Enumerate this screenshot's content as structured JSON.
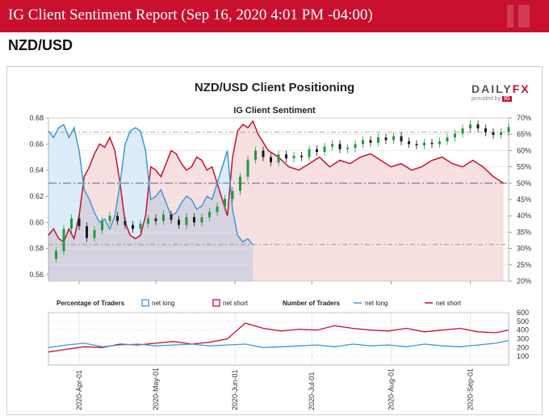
{
  "header": {
    "title": "IG Client Sentiment Report (Sep 16, 2020 4:01 PM -04:00)",
    "pair": "NZD/USD"
  },
  "branding": {
    "logo_left": "DAILY",
    "logo_right": "FX",
    "provided_by": "provided by",
    "badge": "IG"
  },
  "colors": {
    "banner": "#c8102e",
    "net_long": "#3a9ad9",
    "net_short": "#c8102e",
    "candle_up": "#1f9a3a",
    "candle_down": "#1a1a1a"
  },
  "chart_data": [
    {
      "type": "line",
      "title": "NZD/USD Client Positioning",
      "subtitle": "IG Client Sentiment",
      "price_axis": {
        "ylim": [
          0.555,
          0.68
        ],
        "ticks": [
          "0.56",
          "0.58",
          "0.60",
          "0.62",
          "0.64",
          "0.66",
          "0.68"
        ]
      },
      "pct_axis": {
        "ylim": [
          20,
          70
        ],
        "ticks": [
          "20%",
          "25%",
          "30%",
          "35%",
          "40%",
          "45%",
          "50%",
          "55%",
          "60%",
          "65%",
          "70%"
        ]
      },
      "x_ticks": [
        "2020-Apr-01",
        "2020-May-01",
        "2020-Jun-01",
        "2020-Jul-01",
        "2020-Aug-01",
        "2020-Sep-01"
      ],
      "x_range": [
        "2020-03-20",
        "2020-09-16"
      ],
      "reference_lines": {
        "pct": 50,
        "price": [
          0.669,
          0.583
        ]
      },
      "series": [
        {
          "name": "net long",
          "kind": "percent",
          "points": [
            [
              "2020-03-20",
              66
            ],
            [
              "2020-03-22",
              64
            ],
            [
              "2020-03-24",
              67
            ],
            [
              "2020-03-26",
              68
            ],
            [
              "2020-03-28",
              64
            ],
            [
              "2020-03-30",
              67
            ],
            [
              "2020-04-01",
              60
            ],
            [
              "2020-04-03",
              48
            ],
            [
              "2020-04-05",
              45
            ],
            [
              "2020-04-07",
              41
            ],
            [
              "2020-04-09",
              38
            ],
            [
              "2020-04-11",
              39
            ],
            [
              "2020-04-13",
              36
            ],
            [
              "2020-04-15",
              40
            ],
            [
              "2020-04-17",
              50
            ],
            [
              "2020-04-19",
              62
            ],
            [
              "2020-04-21",
              66
            ],
            [
              "2020-04-23",
              67
            ],
            [
              "2020-04-25",
              66
            ],
            [
              "2020-04-27",
              60
            ],
            [
              "2020-04-29",
              45
            ],
            [
              "2020-05-01",
              46
            ],
            [
              "2020-05-03",
              48
            ],
            [
              "2020-05-05",
              44
            ],
            [
              "2020-05-07",
              40
            ],
            [
              "2020-05-09",
              41
            ],
            [
              "2020-05-11",
              44
            ],
            [
              "2020-05-13",
              46
            ],
            [
              "2020-05-15",
              45
            ],
            [
              "2020-05-17",
              42
            ],
            [
              "2020-05-19",
              43
            ],
            [
              "2020-05-21",
              46
            ],
            [
              "2020-05-23",
              45
            ],
            [
              "2020-05-25",
              50
            ],
            [
              "2020-05-27",
              55
            ],
            [
              "2020-05-29",
              60
            ],
            [
              "2020-05-31",
              42
            ],
            [
              "2020-06-02",
              34
            ],
            [
              "2020-06-04",
              32
            ],
            [
              "2020-06-06",
              33
            ],
            [
              "2020-06-08",
              31
            ]
          ]
        },
        {
          "name": "net short",
          "kind": "percent",
          "points": [
            [
              "2020-03-20",
              34
            ],
            [
              "2020-03-22",
              36
            ],
            [
              "2020-03-24",
              33
            ],
            [
              "2020-03-26",
              32
            ],
            [
              "2020-03-28",
              36
            ],
            [
              "2020-03-30",
              33
            ],
            [
              "2020-04-01",
              40
            ],
            [
              "2020-04-03",
              52
            ],
            [
              "2020-04-05",
              55
            ],
            [
              "2020-04-07",
              59
            ],
            [
              "2020-04-09",
              62
            ],
            [
              "2020-04-11",
              61
            ],
            [
              "2020-04-13",
              64
            ],
            [
              "2020-04-15",
              60
            ],
            [
              "2020-04-17",
              50
            ],
            [
              "2020-04-19",
              38
            ],
            [
              "2020-04-21",
              34
            ],
            [
              "2020-04-23",
              33
            ],
            [
              "2020-04-25",
              34
            ],
            [
              "2020-04-27",
              40
            ],
            [
              "2020-04-29",
              55
            ],
            [
              "2020-05-01",
              54
            ],
            [
              "2020-05-03",
              52
            ],
            [
              "2020-05-05",
              56
            ],
            [
              "2020-05-07",
              60
            ],
            [
              "2020-05-09",
              59
            ],
            [
              "2020-05-11",
              56
            ],
            [
              "2020-05-13",
              54
            ],
            [
              "2020-05-15",
              55
            ],
            [
              "2020-05-17",
              58
            ],
            [
              "2020-05-19",
              57
            ],
            [
              "2020-05-21",
              54
            ],
            [
              "2020-05-23",
              55
            ],
            [
              "2020-05-25",
              50
            ],
            [
              "2020-05-27",
              45
            ],
            [
              "2020-05-29",
              40
            ],
            [
              "2020-05-31",
              58
            ],
            [
              "2020-06-02",
              66
            ],
            [
              "2020-06-04",
              68
            ],
            [
              "2020-06-06",
              67
            ],
            [
              "2020-06-08",
              69
            ],
            [
              "2020-06-10",
              65
            ],
            [
              "2020-06-14",
              60
            ],
            [
              "2020-06-18",
              58
            ],
            [
              "2020-06-22",
              55
            ],
            [
              "2020-06-26",
              54
            ],
            [
              "2020-06-30",
              56
            ],
            [
              "2020-07-04",
              58
            ],
            [
              "2020-07-08",
              55
            ],
            [
              "2020-07-12",
              57
            ],
            [
              "2020-07-16",
              56
            ],
            [
              "2020-07-20",
              58
            ],
            [
              "2020-07-24",
              59
            ],
            [
              "2020-07-28",
              57
            ],
            [
              "2020-08-01",
              55
            ],
            [
              "2020-08-05",
              56
            ],
            [
              "2020-08-09",
              54
            ],
            [
              "2020-08-13",
              55
            ],
            [
              "2020-08-17",
              57
            ],
            [
              "2020-08-21",
              58
            ],
            [
              "2020-08-25",
              56
            ],
            [
              "2020-08-29",
              55
            ],
            [
              "2020-09-02",
              57
            ],
            [
              "2020-09-06",
              55
            ],
            [
              "2020-09-10",
              52
            ],
            [
              "2020-09-14",
              50
            ]
          ]
        },
        {
          "name": "price",
          "kind": "price",
          "points": [
            [
              "2020-03-20",
              0.572
            ],
            [
              "2020-03-23",
              0.578
            ],
            [
              "2020-03-26",
              0.595
            ],
            [
              "2020-03-29",
              0.603
            ],
            [
              "2020-04-01",
              0.597
            ],
            [
              "2020-04-04",
              0.588
            ],
            [
              "2020-04-07",
              0.594
            ],
            [
              "2020-04-10",
              0.601
            ],
            [
              "2020-04-13",
              0.605
            ],
            [
              "2020-04-16",
              0.601
            ],
            [
              "2020-04-19",
              0.598
            ],
            [
              "2020-04-22",
              0.595
            ],
            [
              "2020-04-25",
              0.599
            ],
            [
              "2020-04-28",
              0.603
            ],
            [
              "2020-05-01",
              0.601
            ],
            [
              "2020-05-04",
              0.606
            ],
            [
              "2020-05-07",
              0.602
            ],
            [
              "2020-05-10",
              0.598
            ],
            [
              "2020-05-13",
              0.604
            ],
            [
              "2020-05-16",
              0.6
            ],
            [
              "2020-05-19",
              0.604
            ],
            [
              "2020-05-22",
              0.608
            ],
            [
              "2020-05-25",
              0.612
            ],
            [
              "2020-05-28",
              0.618
            ],
            [
              "2020-05-31",
              0.624
            ],
            [
              "2020-06-03",
              0.635
            ],
            [
              "2020-06-06",
              0.648
            ],
            [
              "2020-06-09",
              0.655
            ],
            [
              "2020-06-12",
              0.65
            ],
            [
              "2020-06-15",
              0.646
            ],
            [
              "2020-06-18",
              0.652
            ],
            [
              "2020-06-21",
              0.649
            ],
            [
              "2020-06-24",
              0.651
            ],
            [
              "2020-06-27",
              0.65
            ],
            [
              "2020-06-30",
              0.656
            ],
            [
              "2020-07-03",
              0.654
            ],
            [
              "2020-07-06",
              0.658
            ],
            [
              "2020-07-09",
              0.66
            ],
            [
              "2020-07-12",
              0.656
            ],
            [
              "2020-07-15",
              0.657
            ],
            [
              "2020-07-18",
              0.66
            ],
            [
              "2020-07-21",
              0.663
            ],
            [
              "2020-07-24",
              0.661
            ],
            [
              "2020-07-27",
              0.665
            ],
            [
              "2020-07-30",
              0.663
            ],
            [
              "2020-08-02",
              0.666
            ],
            [
              "2020-08-05",
              0.662
            ],
            [
              "2020-08-08",
              0.66
            ],
            [
              "2020-08-11",
              0.659
            ],
            [
              "2020-08-14",
              0.661
            ],
            [
              "2020-08-17",
              0.66
            ],
            [
              "2020-08-20",
              0.662
            ],
            [
              "2020-08-23",
              0.665
            ],
            [
              "2020-08-26",
              0.668
            ],
            [
              "2020-08-29",
              0.672
            ],
            [
              "2020-09-01",
              0.675
            ],
            [
              "2020-09-04",
              0.672
            ],
            [
              "2020-09-07",
              0.669
            ],
            [
              "2020-09-10",
              0.667
            ],
            [
              "2020-09-13",
              0.669
            ],
            [
              "2020-09-16",
              0.673
            ]
          ]
        }
      ]
    },
    {
      "type": "line",
      "title": "Number of Traders",
      "ylim": [
        0,
        600
      ],
      "y_ticks": [
        "100",
        "200",
        "300",
        "400",
        "500",
        "600"
      ],
      "series": [
        {
          "name": "net long",
          "points": [
            [
              "2020-03-20",
              200
            ],
            [
              "2020-03-27",
              230
            ],
            [
              "2020-04-03",
              250
            ],
            [
              "2020-04-10",
              210
            ],
            [
              "2020-04-17",
              230
            ],
            [
              "2020-04-24",
              240
            ],
            [
              "2020-05-01",
              220
            ],
            [
              "2020-05-08",
              230
            ],
            [
              "2020-05-15",
              240
            ],
            [
              "2020-05-22",
              220
            ],
            [
              "2020-05-29",
              230
            ],
            [
              "2020-06-05",
              240
            ],
            [
              "2020-06-12",
              200
            ],
            [
              "2020-06-19",
              210
            ],
            [
              "2020-06-26",
              220
            ],
            [
              "2020-07-03",
              230
            ],
            [
              "2020-07-10",
              210
            ],
            [
              "2020-07-17",
              240
            ],
            [
              "2020-07-24",
              220
            ],
            [
              "2020-07-31",
              230
            ],
            [
              "2020-08-07",
              210
            ],
            [
              "2020-08-14",
              240
            ],
            [
              "2020-08-21",
              220
            ],
            [
              "2020-08-28",
              210
            ],
            [
              "2020-09-04",
              230
            ],
            [
              "2020-09-11",
              250
            ],
            [
              "2020-09-16",
              280
            ]
          ]
        },
        {
          "name": "net short",
          "points": [
            [
              "2020-03-20",
              150
            ],
            [
              "2020-03-27",
              180
            ],
            [
              "2020-04-03",
              210
            ],
            [
              "2020-04-10",
              200
            ],
            [
              "2020-04-17",
              240
            ],
            [
              "2020-04-24",
              230
            ],
            [
              "2020-05-01",
              250
            ],
            [
              "2020-05-08",
              270
            ],
            [
              "2020-05-15",
              240
            ],
            [
              "2020-05-22",
              260
            ],
            [
              "2020-05-29",
              300
            ],
            [
              "2020-06-05",
              480
            ],
            [
              "2020-06-12",
              420
            ],
            [
              "2020-06-19",
              390
            ],
            [
              "2020-06-26",
              410
            ],
            [
              "2020-07-03",
              400
            ],
            [
              "2020-07-10",
              450
            ],
            [
              "2020-07-17",
              420
            ],
            [
              "2020-07-24",
              400
            ],
            [
              "2020-07-31",
              390
            ],
            [
              "2020-08-07",
              420
            ],
            [
              "2020-08-14",
              380
            ],
            [
              "2020-08-21",
              400
            ],
            [
              "2020-08-28",
              420
            ],
            [
              "2020-09-04",
              380
            ],
            [
              "2020-09-11",
              370
            ],
            [
              "2020-09-16",
              400
            ]
          ]
        }
      ]
    }
  ],
  "legend": {
    "pct_title": "Percentage of Traders",
    "num_title": "Number of Traders",
    "net_long": "net long",
    "net_short": "net short"
  }
}
